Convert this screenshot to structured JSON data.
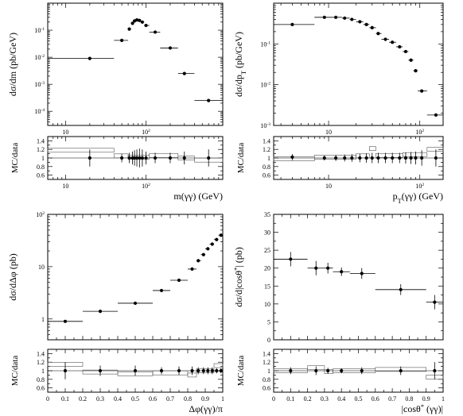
{
  "chart_data": [
    {
      "type": "scatter",
      "panel": "top-left-main",
      "ylabel": "dσ/dm (pb/GeV)",
      "xscale": "log",
      "yscale": "log",
      "xlim": [
        6,
        900
      ],
      "ylim": [
        3e-05,
        1
      ],
      "xticks": [
        {
          "v": 10,
          "l": "10"
        },
        {
          "v": 100,
          "l": "10",
          "sup": "2"
        }
      ],
      "yticks": [
        {
          "v": 0.1,
          "l": "10",
          "sup": "-1"
        },
        {
          "v": 0.01,
          "l": "10",
          "sup": "-2"
        },
        {
          "v": 0.001,
          "l": "10",
          "sup": "-3"
        },
        {
          "v": 0.0001,
          "l": "10",
          "sup": "-4"
        }
      ],
      "points": [
        {
          "x": 20,
          "y": 0.009,
          "x0": 6,
          "x1": 40,
          "ey": 0
        },
        {
          "x": 50,
          "y": 0.042,
          "x0": 40,
          "x1": 60,
          "ey": 0
        },
        {
          "x": 62,
          "y": 0.11,
          "x0": 60,
          "x1": 65,
          "ey": 0
        },
        {
          "x": 68,
          "y": 0.18,
          "x0": 65,
          "x1": 70,
          "ey": 0
        },
        {
          "x": 72,
          "y": 0.22,
          "x0": 70,
          "x1": 75,
          "ey": 0
        },
        {
          "x": 77,
          "y": 0.24,
          "x0": 75,
          "x1": 80,
          "ey": 0
        },
        {
          "x": 83,
          "y": 0.23,
          "x0": 80,
          "x1": 86,
          "ey": 0
        },
        {
          "x": 90,
          "y": 0.2,
          "x0": 86,
          "x1": 95,
          "ey": 0
        },
        {
          "x": 100,
          "y": 0.15,
          "x0": 95,
          "x1": 110,
          "ey": 0
        },
        {
          "x": 130,
          "y": 0.085,
          "x0": 110,
          "x1": 150,
          "ey": 0
        },
        {
          "x": 200,
          "y": 0.022,
          "x0": 150,
          "x1": 250,
          "ey": 0
        },
        {
          "x": 300,
          "y": 0.0025,
          "x0": 250,
          "x1": 400,
          "ey": 0
        },
        {
          "x": 600,
          "y": 0.00025,
          "x0": 400,
          "x1": 900,
          "ey": 0
        }
      ]
    },
    {
      "type": "scatter",
      "panel": "top-left-ratio",
      "ylabel": "MC/data",
      "xlabel": "m(γγ) (GeV)",
      "xscale": "log",
      "xlim": [
        6,
        900
      ],
      "ylim": [
        0.5,
        1.5
      ],
      "xticks": [
        {
          "v": 10,
          "l": "10"
        },
        {
          "v": 100,
          "l": "10",
          "sup": "2"
        }
      ],
      "yticks": [
        {
          "v": 0.6,
          "l": "0.6"
        },
        {
          "v": 0.8,
          "l": "0.8"
        },
        {
          "v": 1,
          "l": "1"
        },
        {
          "v": 1.2,
          "l": "1.2"
        },
        {
          "v": 1.4,
          "l": "1.4"
        }
      ],
      "points": [
        {
          "x": 20,
          "y": 1.0,
          "ey": 0.2
        },
        {
          "x": 50,
          "y": 1.0,
          "ey": 0.1
        },
        {
          "x": 62,
          "y": 1.0,
          "ey": 0.12
        },
        {
          "x": 68,
          "y": 1.0,
          "ey": 0.15
        },
        {
          "x": 72,
          "y": 1.0,
          "ey": 0.18
        },
        {
          "x": 77,
          "y": 1.0,
          "ey": 0.2
        },
        {
          "x": 83,
          "y": 1.0,
          "ey": 0.22
        },
        {
          "x": 90,
          "y": 1.0,
          "ey": 0.2
        },
        {
          "x": 100,
          "y": 1.0,
          "ey": 0.15
        },
        {
          "x": 130,
          "y": 1.0,
          "ey": 0.12
        },
        {
          "x": 200,
          "y": 1.0,
          "ey": 0.12
        },
        {
          "x": 300,
          "y": 1.0,
          "ey": 0.15
        },
        {
          "x": 600,
          "y": 1.0,
          "ey": 0.2
        }
      ],
      "hist": [
        {
          "x0": 6,
          "x1": 40,
          "y": 1.18
        },
        {
          "x0": 40,
          "x1": 60,
          "y": 1.05
        },
        {
          "x0": 60,
          "x1": 110,
          "y": 1.02
        },
        {
          "x0": 110,
          "x1": 250,
          "y": 1.06
        },
        {
          "x0": 250,
          "x1": 400,
          "y": 1.0
        },
        {
          "x0": 400,
          "x1": 900,
          "y": 0.95
        }
      ]
    },
    {
      "type": "scatter",
      "panel": "top-right-main",
      "ylabel": "dσ/dp",
      "ylabel_sub": "T",
      "ylabel_tail": " (pb/GeV)",
      "xscale": "log",
      "yscale": "log",
      "xlim": [
        2.5,
        180
      ],
      "ylim": [
        0.001,
        1
      ],
      "xticks": [
        {
          "v": 10,
          "l": "10"
        },
        {
          "v": 100,
          "l": "10",
          "sup": "2"
        }
      ],
      "yticks": [
        {
          "v": 0.1,
          "l": "10",
          "sup": "-1"
        },
        {
          "v": 0.01,
          "l": "10",
          "sup": "-2"
        },
        {
          "v": 0.001,
          "l": "10",
          "sup": "-3"
        }
      ],
      "points": [
        {
          "x": 4,
          "y": 0.3,
          "x0": 2.5,
          "x1": 7,
          "ey": 0
        },
        {
          "x": 9,
          "y": 0.45,
          "x0": 7,
          "x1": 11,
          "ey": 0
        },
        {
          "x": 12,
          "y": 0.45,
          "x0": 11,
          "x1": 14,
          "ey": 0
        },
        {
          "x": 15,
          "y": 0.43,
          "x0": 14,
          "x1": 17,
          "ey": 0
        },
        {
          "x": 18,
          "y": 0.4,
          "x0": 17,
          "x1": 20,
          "ey": 0
        },
        {
          "x": 22,
          "y": 0.35,
          "x0": 20,
          "x1": 24,
          "ey": 0
        },
        {
          "x": 26,
          "y": 0.3,
          "x0": 24,
          "x1": 28,
          "ey": 0
        },
        {
          "x": 30,
          "y": 0.25,
          "x0": 28,
          "x1": 33,
          "ey": 0
        },
        {
          "x": 35,
          "y": 0.18,
          "x0": 33,
          "x1": 38,
          "ey": 0
        },
        {
          "x": 42,
          "y": 0.13,
          "x0": 38,
          "x1": 46,
          "ey": 0
        },
        {
          "x": 50,
          "y": 0.11,
          "x0": 46,
          "x1": 55,
          "ey": 0
        },
        {
          "x": 60,
          "y": 0.085,
          "x0": 55,
          "x1": 65,
          "ey": 0
        },
        {
          "x": 70,
          "y": 0.065,
          "x0": 65,
          "x1": 75,
          "ey": 0
        },
        {
          "x": 80,
          "y": 0.04,
          "x0": 75,
          "x1": 85,
          "ey": 0
        },
        {
          "x": 90,
          "y": 0.022,
          "x0": 85,
          "x1": 95,
          "ey": 0
        },
        {
          "x": 105,
          "y": 0.007,
          "x0": 95,
          "x1": 120,
          "ey": 0
        },
        {
          "x": 150,
          "y": 0.0018,
          "x0": 120,
          "x1": 180,
          "ey": 0
        }
      ]
    },
    {
      "type": "scatter",
      "panel": "top-right-ratio",
      "ylabel": "MC/data",
      "xlabel": "p",
      "xlabel_sub": "T",
      "xlabel_tail": "(γγ) (GeV)",
      "xscale": "log",
      "xlim": [
        2.5,
        180
      ],
      "ylim": [
        0.5,
        1.5
      ],
      "xticks": [
        {
          "v": 10,
          "l": "10"
        },
        {
          "v": 100,
          "l": "10",
          "sup": "2"
        }
      ],
      "yticks": [
        {
          "v": 0.6,
          "l": "0.6"
        },
        {
          "v": 0.8,
          "l": "0.8"
        },
        {
          "v": 1,
          "l": "1"
        },
        {
          "v": 1.2,
          "l": "1.2"
        },
        {
          "v": 1.4,
          "l": "1.4"
        }
      ],
      "points": [
        {
          "x": 4,
          "y": 1.02,
          "ey": 0.07
        },
        {
          "x": 9,
          "y": 1.0,
          "ey": 0.06
        },
        {
          "x": 12,
          "y": 1.0,
          "ey": 0.07
        },
        {
          "x": 15,
          "y": 1.0,
          "ey": 0.08
        },
        {
          "x": 18,
          "y": 1.0,
          "ey": 0.09
        },
        {
          "x": 22,
          "y": 1.0,
          "ey": 0.1
        },
        {
          "x": 26,
          "y": 1.0,
          "ey": 0.11
        },
        {
          "x": 30,
          "y": 1.0,
          "ey": 0.12
        },
        {
          "x": 35,
          "y": 1.0,
          "ey": 0.12
        },
        {
          "x": 42,
          "y": 1.0,
          "ey": 0.12
        },
        {
          "x": 50,
          "y": 1.0,
          "ey": 0.12
        },
        {
          "x": 60,
          "y": 1.0,
          "ey": 0.12
        },
        {
          "x": 70,
          "y": 1.0,
          "ey": 0.13
        },
        {
          "x": 80,
          "y": 1.0,
          "ey": 0.14
        },
        {
          "x": 90,
          "y": 1.0,
          "ey": 0.15
        },
        {
          "x": 105,
          "y": 1.0,
          "ey": 0.18
        },
        {
          "x": 150,
          "y": 1.0,
          "ey": 0.2
        }
      ],
      "hist": [
        {
          "x0": 2.5,
          "x1": 7,
          "y": 0.98
        },
        {
          "x0": 7,
          "x1": 20,
          "y": 1.02
        },
        {
          "x0": 20,
          "x1": 28,
          "y": 1.05
        },
        {
          "x0": 28,
          "x1": 33,
          "y": 1.22
        },
        {
          "x0": 33,
          "x1": 65,
          "y": 1.06
        },
        {
          "x0": 65,
          "x1": 120,
          "y": 1.08
        },
        {
          "x0": 120,
          "x1": 180,
          "y": 1.2
        }
      ]
    },
    {
      "type": "scatter",
      "panel": "bottom-left-main",
      "ylabel": "dσ/dΔφ (pb)",
      "yscale": "log",
      "xlim": [
        0,
        1
      ],
      "ylim": [
        0.4,
        100
      ],
      "xticks": [],
      "yticks": [
        {
          "v": 1,
          "l": "1"
        },
        {
          "v": 10,
          "l": "10"
        },
        {
          "v": 100,
          "l": "10",
          "sup": "2"
        }
      ],
      "points": [
        {
          "x": 0.1,
          "y": 0.9,
          "x0": 0,
          "x1": 0.2,
          "ey": 0
        },
        {
          "x": 0.3,
          "y": 1.4,
          "x0": 0.2,
          "x1": 0.4,
          "ey": 0
        },
        {
          "x": 0.5,
          "y": 2.0,
          "x0": 0.4,
          "x1": 0.6,
          "ey": 0
        },
        {
          "x": 0.65,
          "y": 3.5,
          "x0": 0.6,
          "x1": 0.7,
          "ey": 0
        },
        {
          "x": 0.75,
          "y": 5.5,
          "x0": 0.7,
          "x1": 0.8,
          "ey": 0
        },
        {
          "x": 0.825,
          "y": 9,
          "x0": 0.8,
          "x1": 0.85,
          "ey": 0
        },
        {
          "x": 0.86,
          "y": 13,
          "x0": 0.85,
          "x1": 0.875,
          "ey": 0
        },
        {
          "x": 0.89,
          "y": 17,
          "x0": 0.875,
          "x1": 0.9,
          "ey": 0
        },
        {
          "x": 0.915,
          "y": 22,
          "x0": 0.9,
          "x1": 0.925,
          "ey": 0
        },
        {
          "x": 0.94,
          "y": 27,
          "x0": 0.925,
          "x1": 0.95,
          "ey": 0
        },
        {
          "x": 0.965,
          "y": 33,
          "x0": 0.95,
          "x1": 0.975,
          "ey": 0
        },
        {
          "x": 0.99,
          "y": 40,
          "x0": 0.975,
          "x1": 1.0,
          "ey": 0
        }
      ]
    },
    {
      "type": "scatter",
      "panel": "bottom-left-ratio",
      "ylabel": "MC/data",
      "xlabel": "Δφ(γγ)/π",
      "xlim": [
        0,
        1
      ],
      "ylim": [
        0.5,
        1.5
      ],
      "xticks": [
        {
          "v": 0,
          "l": "0"
        },
        {
          "v": 0.1,
          "l": "0.1"
        },
        {
          "v": 0.2,
          "l": "0.2"
        },
        {
          "v": 0.3,
          "l": "0.3"
        },
        {
          "v": 0.4,
          "l": "0.4"
        },
        {
          "v": 0.5,
          "l": "0.5"
        },
        {
          "v": 0.6,
          "l": "0.6"
        },
        {
          "v": 0.7,
          "l": "0.7"
        },
        {
          "v": 0.8,
          "l": "0.8"
        },
        {
          "v": 0.9,
          "l": "0.9"
        },
        {
          "v": 1,
          "l": "1"
        }
      ],
      "yticks": [
        {
          "v": 0.6,
          "l": "0.6"
        },
        {
          "v": 0.8,
          "l": "0.8"
        },
        {
          "v": 1,
          "l": "1"
        },
        {
          "v": 1.2,
          "l": "1.2"
        },
        {
          "v": 1.4,
          "l": "1.4"
        }
      ],
      "points": [
        {
          "x": 0.1,
          "y": 1.0,
          "ey": 0.2
        },
        {
          "x": 0.3,
          "y": 1.0,
          "ey": 0.12
        },
        {
          "x": 0.5,
          "y": 1.0,
          "ey": 0.12
        },
        {
          "x": 0.65,
          "y": 1.0,
          "ey": 0.08
        },
        {
          "x": 0.75,
          "y": 1.0,
          "ey": 0.1
        },
        {
          "x": 0.825,
          "y": 1.0,
          "ey": 0.1
        },
        {
          "x": 0.86,
          "y": 1.0,
          "ey": 0.08
        },
        {
          "x": 0.89,
          "y": 1.0,
          "ey": 0.08
        },
        {
          "x": 0.915,
          "y": 1.0,
          "ey": 0.08
        },
        {
          "x": 0.94,
          "y": 1.0,
          "ey": 0.08
        },
        {
          "x": 0.965,
          "y": 1.0,
          "ey": 0.06
        },
        {
          "x": 0.99,
          "y": 1.0,
          "ey": 0.06
        }
      ],
      "hist": [
        {
          "x0": 0,
          "x1": 0.2,
          "y": 1.15
        },
        {
          "x0": 0.2,
          "x1": 0.4,
          "y": 0.97
        },
        {
          "x0": 0.4,
          "x1": 0.6,
          "y": 0.93
        },
        {
          "x0": 0.6,
          "x1": 0.8,
          "y": 0.95
        },
        {
          "x0": 0.8,
          "x1": 0.85,
          "y": 0.9
        },
        {
          "x0": 0.85,
          "x1": 0.95,
          "y": 1.0
        },
        {
          "x0": 0.95,
          "x1": 1.0,
          "y": 1.12
        }
      ]
    },
    {
      "type": "scatter",
      "panel": "bottom-right-main",
      "ylabel": "dσ/d|cosθ",
      "ylabel_sup": "*",
      "ylabel_tail": "| (pb)",
      "xlim": [
        0,
        1
      ],
      "ylim": [
        0,
        35
      ],
      "xticks": [],
      "yticks": [
        {
          "v": 0,
          "l": "0"
        },
        {
          "v": 5,
          "l": "5"
        },
        {
          "v": 10,
          "l": "10"
        },
        {
          "v": 15,
          "l": "15"
        },
        {
          "v": 20,
          "l": "20"
        },
        {
          "v": 25,
          "l": "25"
        },
        {
          "v": 30,
          "l": "30"
        },
        {
          "v": 35,
          "l": "35"
        }
      ],
      "points": [
        {
          "x": 0.1,
          "y": 22.5,
          "x0": 0,
          "x1": 0.2,
          "ey": 2
        },
        {
          "x": 0.25,
          "y": 20,
          "x0": 0.2,
          "x1": 0.3,
          "ey": 2
        },
        {
          "x": 0.32,
          "y": 20,
          "x0": 0.3,
          "x1": 0.35,
          "ey": 1.5
        },
        {
          "x": 0.4,
          "y": 19,
          "x0": 0.35,
          "x1": 0.45,
          "ey": 1.2
        },
        {
          "x": 0.52,
          "y": 18.5,
          "x0": 0.45,
          "x1": 0.6,
          "ey": 1.5
        },
        {
          "x": 0.75,
          "y": 14,
          "x0": 0.6,
          "x1": 0.9,
          "ey": 1.5
        },
        {
          "x": 0.95,
          "y": 10.5,
          "x0": 0.9,
          "x1": 1.0,
          "ey": 2
        }
      ]
    },
    {
      "type": "scatter",
      "panel": "bottom-right-ratio",
      "ylabel": "MC/data",
      "xlabel": "|cosθ",
      "xlabel_sup": "*",
      "xlabel_tail": " (γγ)|",
      "xlim": [
        0,
        1
      ],
      "ylim": [
        0.5,
        1.5
      ],
      "xticks": [
        {
          "v": 0,
          "l": "0"
        },
        {
          "v": 0.1,
          "l": "0.1"
        },
        {
          "v": 0.2,
          "l": "0.2"
        },
        {
          "v": 0.3,
          "l": "0.3"
        },
        {
          "v": 0.4,
          "l": "0.4"
        },
        {
          "v": 0.5,
          "l": "0.5"
        },
        {
          "v": 0.6,
          "l": "0.6"
        },
        {
          "v": 0.7,
          "l": "0.7"
        },
        {
          "v": 0.8,
          "l": "0.8"
        },
        {
          "v": 0.9,
          "l": "0.9"
        },
        {
          "v": 1,
          "l": "1"
        }
      ],
      "yticks": [
        {
          "v": 0.6,
          "l": "0.6"
        },
        {
          "v": 0.8,
          "l": "0.8"
        },
        {
          "v": 1,
          "l": "1"
        },
        {
          "v": 1.2,
          "l": "1.2"
        },
        {
          "v": 1.4,
          "l": "1.4"
        }
      ],
      "points": [
        {
          "x": 0.1,
          "y": 1.0,
          "ey": 0.08
        },
        {
          "x": 0.25,
          "y": 1.0,
          "ey": 0.1
        },
        {
          "x": 0.32,
          "y": 1.0,
          "ey": 0.07
        },
        {
          "x": 0.4,
          "y": 1.0,
          "ey": 0.06
        },
        {
          "x": 0.52,
          "y": 1.0,
          "ey": 0.08
        },
        {
          "x": 0.75,
          "y": 1.0,
          "ey": 0.1
        },
        {
          "x": 0.95,
          "y": 1.0,
          "ey": 0.2
        }
      ],
      "hist": [
        {
          "x0": 0,
          "x1": 0.2,
          "y": 1.0
        },
        {
          "x0": 0.2,
          "x1": 0.3,
          "y": 1.07
        },
        {
          "x0": 0.3,
          "x1": 0.35,
          "y": 0.98
        },
        {
          "x0": 0.35,
          "x1": 0.6,
          "y": 1.0
        },
        {
          "x0": 0.6,
          "x1": 0.9,
          "y": 1.03
        },
        {
          "x0": 0.9,
          "x1": 1.0,
          "y": 0.85
        }
      ]
    }
  ]
}
